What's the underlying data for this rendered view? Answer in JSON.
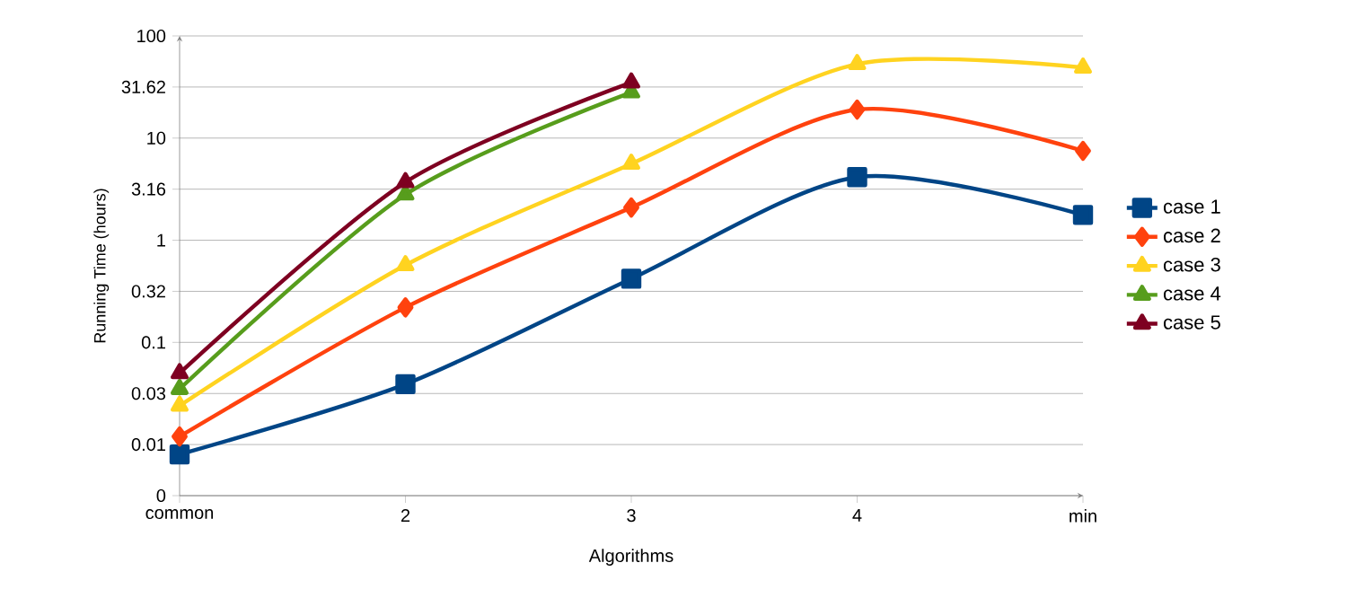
{
  "chart_data": {
    "type": "line",
    "xlabel": "Algorithms",
    "ylabel": "Running Time (hours)",
    "categories": [
      "common",
      "2",
      "3",
      "4",
      "min"
    ],
    "series": [
      {
        "name": "case 1",
        "color": "#004586",
        "marker": "square",
        "values": [
          0.008,
          0.039,
          0.42,
          4.15,
          1.77
        ]
      },
      {
        "name": "case 2",
        "color": "#ff420e",
        "marker": "diamond",
        "values": [
          0.012,
          0.22,
          2.09,
          19,
          7.5
        ]
      },
      {
        "name": "case 3",
        "color": "#ffd320",
        "marker": "triangle",
        "values": [
          0.024,
          0.57,
          5.6,
          53,
          49
        ]
      },
      {
        "name": "case 4",
        "color": "#579d1c",
        "marker": "triangle",
        "values": [
          0.035,
          2.8,
          28,
          null,
          null
        ]
      },
      {
        "name": "case 5",
        "color": "#7e0021",
        "marker": "triangle",
        "values": [
          0.05,
          3.7,
          35,
          null,
          null
        ]
      }
    ],
    "log": "y",
    "ylim": [
      0.00316,
      100
    ],
    "yticks": [
      {
        "value": 0.00316,
        "label": "0"
      },
      0.01,
      {
        "value": 0.0316,
        "label": "0.03"
      },
      0.1,
      {
        "value": 0.316,
        "label": "0.32"
      },
      1,
      {
        "value": 3.162,
        "label": "3.16"
      },
      10,
      31.62,
      100
    ],
    "grid": "y",
    "legend": "right",
    "line_style": "solid"
  }
}
